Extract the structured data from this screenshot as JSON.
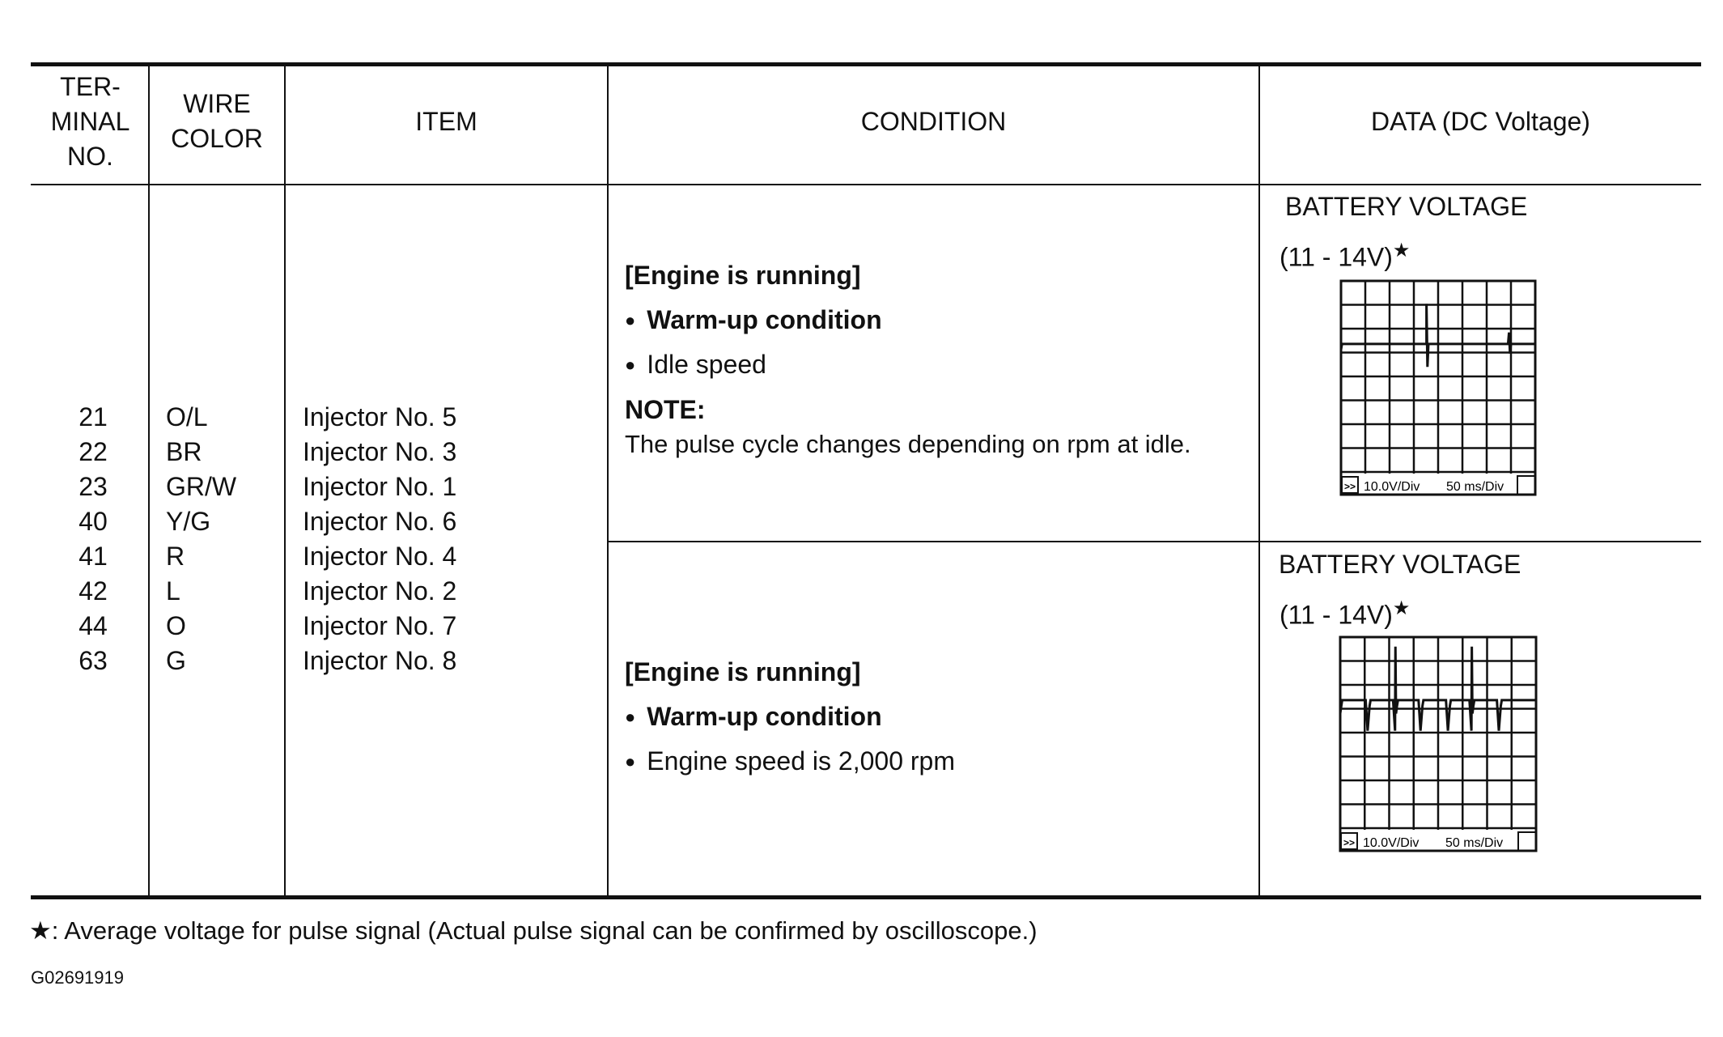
{
  "headers": {
    "terminal": "TER-\nMINAL\nNO.",
    "terminal_lines": [
      "TER-",
      "MINAL",
      "NO."
    ],
    "wire_lines": [
      "WIRE",
      "COLOR"
    ],
    "item": "ITEM",
    "condition": "CONDITION",
    "data": "DATA (DC Voltage)"
  },
  "terminals": [
    "21",
    "22",
    "23",
    "40",
    "41",
    "42",
    "44",
    "63"
  ],
  "wire_colors": [
    "O/L",
    "BR",
    "GR/W",
    "Y/G",
    "R",
    "L",
    "O",
    "G"
  ],
  "items": [
    "Injector No. 5",
    "Injector No. 3",
    "Injector No. 1",
    "Injector No. 6",
    "Injector No. 4",
    "Injector No. 2",
    "Injector No. 7",
    "Injector No. 8"
  ],
  "rows": [
    {
      "condition_title": "[Engine is running]",
      "bullets": [
        "Warm-up condition",
        "Idle speed"
      ],
      "note_label": "NOTE:",
      "note_text": "The pulse cycle changes depending on rpm at idle.",
      "data_line1": "BATTERY VOLTAGE",
      "data_line2": "(11 - 14V)",
      "star": "★",
      "scope": {
        "volt_div": "10.0V/Div",
        "time_div": "50 ms/Div",
        "button": ">>"
      }
    },
    {
      "condition_title": "[Engine is running]",
      "bullets": [
        "Warm-up condition",
        "Engine speed is 2,000 rpm"
      ],
      "data_line1": "BATTERY VOLTAGE",
      "data_line2": "(11 - 14V)",
      "star": "★",
      "scope": {
        "volt_div": "10.0V/Div",
        "time_div": "50 ms/Div",
        "button": ">>"
      }
    }
  ],
  "footnote": {
    "star": "★",
    "text": ": Average voltage for pulse signal (Actual pulse signal can be confirmed by oscilloscope.)"
  },
  "figure_id": "G02691919"
}
